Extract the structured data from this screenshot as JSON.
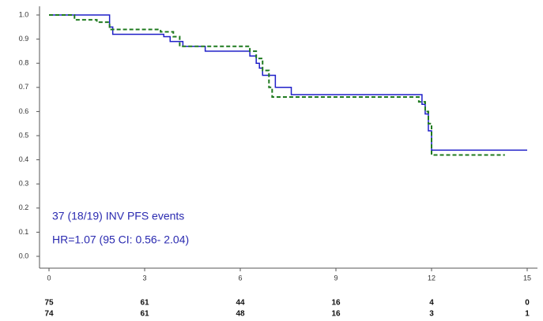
{
  "chart_data": {
    "type": "line",
    "annotations": [
      "37 (18/19)  INV PFS events",
      "HR=1.07 (95 CI: 0.56- 2.04)"
    ],
    "xlim": [
      0,
      15
    ],
    "xticks": [
      0,
      3,
      6,
      9,
      12,
      15
    ],
    "ylim": [
      0,
      1
    ],
    "yticks": [
      {
        "value": 0,
        "label": "0.0"
      },
      0.1,
      0.2,
      0.3,
      0.4,
      0.5,
      0.6,
      0.7,
      0.8,
      0.9,
      {
        "value": 1,
        "label": "1.0"
      }
    ],
    "series": [
      {
        "color": "#1f1fc8",
        "dash": false,
        "x": [
          0,
          1.9,
          2.0,
          3.6,
          3.8,
          4.2,
          4.9,
          6.3,
          6.5,
          6.6,
          6.7,
          7.1,
          7.6,
          11.7,
          11.8,
          11.9,
          12.0,
          15.0
        ],
        "values": [
          1.0,
          0.95,
          0.92,
          0.91,
          0.89,
          0.87,
          0.85,
          0.83,
          0.8,
          0.78,
          0.75,
          0.7,
          0.67,
          0.63,
          0.59,
          0.52,
          0.44,
          0.44
        ]
      },
      {
        "color": "#1f7a1f",
        "dash": true,
        "x": [
          0,
          0.8,
          1.5,
          1.9,
          3.5,
          3.9,
          4.1,
          6.3,
          6.5,
          6.7,
          6.9,
          7.0,
          11.6,
          11.8,
          11.9,
          12.0,
          14.3
        ],
        "values": [
          1.0,
          0.98,
          0.97,
          0.94,
          0.93,
          0.91,
          0.87,
          0.85,
          0.82,
          0.77,
          0.7,
          0.66,
          0.64,
          0.6,
          0.55,
          0.42,
          0.42
        ]
      }
    ],
    "at_risk": [
      [
        75,
        61,
        44,
        16,
        4,
        0
      ],
      [
        74,
        61,
        48,
        16,
        3,
        1
      ]
    ]
  }
}
